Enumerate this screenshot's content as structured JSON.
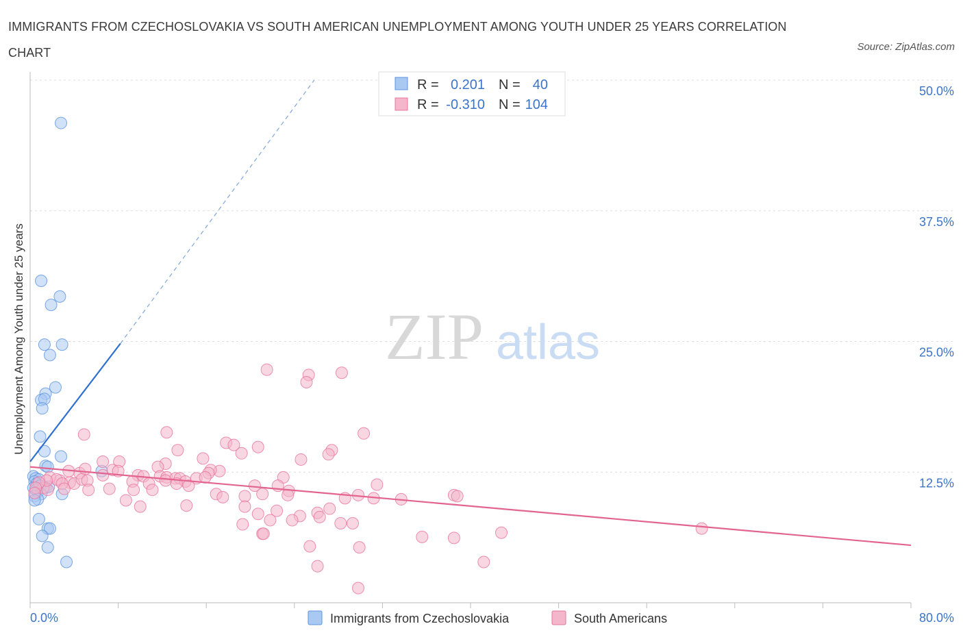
{
  "chart_data": {
    "type": "scatter",
    "title": "IMMIGRANTS FROM CZECHOSLOVAKIA VS SOUTH AMERICAN UNEMPLOYMENT AMONG YOUTH UNDER 25 YEARS CORRELATION CHART",
    "source": "Source: ZipAtlas.com",
    "ylabel": "Unemployment Among Youth under 25 years",
    "xlim": [
      0,
      80
    ],
    "ylim": [
      0,
      50
    ],
    "x_tick_labels": [
      "0.0%",
      "80.0%"
    ],
    "y_ticks": [
      12.5,
      25.0,
      37.5,
      50.0
    ],
    "y_tick_labels": [
      "12.5%",
      "25.0%",
      "37.5%",
      "50.0%"
    ],
    "watermark": "ZIPatlas",
    "legend": {
      "rows": [
        {
          "r_label": "R =",
          "r": "0.201",
          "n_label": "N =",
          "n": "40"
        },
        {
          "r_label": "R =",
          "r": "-0.310",
          "n_label": "N =",
          "n": "104"
        }
      ]
    },
    "series": [
      {
        "name": "Immigrants from Czechoslovakia",
        "color": "#5b93e0",
        "fill": "#a9c8f2",
        "trend": {
          "x0": 0,
          "y0": 13.5,
          "x1": 8.2,
          "y1": 24.8,
          "dash_x1": 25.8,
          "dash_y1": 50.0
        },
        "points": [
          [
            2.8,
            45.9
          ],
          [
            1.0,
            30.8
          ],
          [
            1.9,
            28.5
          ],
          [
            2.7,
            29.3
          ],
          [
            1.3,
            24.7
          ],
          [
            2.9,
            24.7
          ],
          [
            1.8,
            23.7
          ],
          [
            2.3,
            20.6
          ],
          [
            1.4,
            20.0
          ],
          [
            1.0,
            19.4
          ],
          [
            1.3,
            19.5
          ],
          [
            1.1,
            18.6
          ],
          [
            0.9,
            15.9
          ],
          [
            1.3,
            14.5
          ],
          [
            2.8,
            14.0
          ],
          [
            1.4,
            13.1
          ],
          [
            1.6,
            13.0
          ],
          [
            6.5,
            12.6
          ],
          [
            0.3,
            12.1
          ],
          [
            0.5,
            11.9
          ],
          [
            0.8,
            11.8
          ],
          [
            0.4,
            11.6
          ],
          [
            0.6,
            11.4
          ],
          [
            0.9,
            11.2
          ],
          [
            0.3,
            11.0
          ],
          [
            0.5,
            10.8
          ],
          [
            0.7,
            10.6
          ],
          [
            1.4,
            11.0
          ],
          [
            1.7,
            11.1
          ],
          [
            1.0,
            10.4
          ],
          [
            2.9,
            10.4
          ],
          [
            0.4,
            10.2
          ],
          [
            0.7,
            9.9
          ],
          [
            0.4,
            9.8
          ],
          [
            0.8,
            8.0
          ],
          [
            1.6,
            7.1
          ],
          [
            1.8,
            7.1
          ],
          [
            1.1,
            6.4
          ],
          [
            1.6,
            5.3
          ],
          [
            3.3,
            3.9
          ]
        ]
      },
      {
        "name": "South Americans",
        "color": "#e9749c",
        "fill": "#f4b6cb",
        "trend": {
          "x0": 0,
          "y0": 13.0,
          "x1": 80,
          "y1": 5.5
        },
        "points": [
          [
            21.5,
            22.3
          ],
          [
            25.3,
            21.8
          ],
          [
            28.3,
            22.0
          ],
          [
            25.1,
            21.1
          ],
          [
            4.9,
            16.1
          ],
          [
            12.4,
            16.3
          ],
          [
            30.3,
            16.2
          ],
          [
            17.8,
            15.3
          ],
          [
            18.5,
            15.1
          ],
          [
            24.6,
            13.7
          ],
          [
            27.4,
            14.6
          ],
          [
            27.1,
            14.2
          ],
          [
            6.6,
            13.5
          ],
          [
            12.3,
            13.3
          ],
          [
            15.7,
            13.8
          ],
          [
            19.2,
            14.3
          ],
          [
            20.7,
            14.9
          ],
          [
            13.4,
            14.6
          ],
          [
            8.1,
            13.5
          ],
          [
            11.6,
            13.0
          ],
          [
            17.2,
            12.6
          ],
          [
            16.4,
            12.7
          ],
          [
            16.2,
            12.4
          ],
          [
            7.5,
            12.7
          ],
          [
            4.5,
            12.4
          ],
          [
            3.5,
            12.6
          ],
          [
            5.0,
            12.8
          ],
          [
            6.6,
            12.2
          ],
          [
            8.0,
            12.6
          ],
          [
            9.8,
            12.2
          ],
          [
            10.3,
            12.1
          ],
          [
            11.8,
            12.1
          ],
          [
            12.4,
            12.0
          ],
          [
            13.2,
            11.9
          ],
          [
            13.6,
            11.9
          ],
          [
            14.1,
            11.6
          ],
          [
            15.1,
            11.9
          ],
          [
            2.7,
            11.7
          ],
          [
            3.6,
            11.5
          ],
          [
            4.0,
            11.4
          ],
          [
            4.7,
            11.8
          ],
          [
            5.2,
            11.7
          ],
          [
            9.3,
            11.6
          ],
          [
            10.8,
            11.4
          ],
          [
            12.3,
            11.7
          ],
          [
            13.3,
            11.4
          ],
          [
            14.4,
            11.2
          ],
          [
            15.9,
            12.0
          ],
          [
            20.4,
            11.2
          ],
          [
            23.0,
            12.0
          ],
          [
            22.5,
            11.2
          ],
          [
            23.5,
            10.7
          ],
          [
            31.5,
            11.3
          ],
          [
            1.8,
            12.0
          ],
          [
            2.4,
            11.8
          ],
          [
            2.9,
            11.4
          ],
          [
            3.1,
            10.9
          ],
          [
            1.2,
            11.0
          ],
          [
            1.6,
            10.8
          ],
          [
            1.5,
            11.7
          ],
          [
            0.8,
            11.5
          ],
          [
            0.5,
            11.0
          ],
          [
            0.4,
            10.5
          ],
          [
            5.3,
            10.8
          ],
          [
            7.2,
            10.9
          ],
          [
            9.4,
            10.8
          ],
          [
            11.1,
            10.8
          ],
          [
            16.9,
            10.4
          ],
          [
            19.5,
            10.2
          ],
          [
            21.1,
            10.4
          ],
          [
            23.4,
            10.3
          ],
          [
            28.6,
            10.0
          ],
          [
            29.8,
            10.3
          ],
          [
            31.2,
            10.0
          ],
          [
            33.7,
            9.9
          ],
          [
            38.5,
            10.3
          ],
          [
            38.8,
            10.2
          ],
          [
            17.5,
            10.1
          ],
          [
            8.7,
            9.8
          ],
          [
            10.0,
            9.2
          ],
          [
            14.2,
            9.3
          ],
          [
            19.5,
            9.2
          ],
          [
            20.7,
            8.5
          ],
          [
            22.4,
            8.8
          ],
          [
            24.5,
            8.3
          ],
          [
            26.1,
            8.6
          ],
          [
            26.3,
            8.2
          ],
          [
            27.2,
            9.0
          ],
          [
            19.3,
            7.5
          ],
          [
            21.8,
            7.9
          ],
          [
            23.8,
            7.9
          ],
          [
            28.2,
            7.6
          ],
          [
            29.3,
            7.6
          ],
          [
            21.1,
            6.6
          ],
          [
            21.2,
            6.6
          ],
          [
            35.6,
            6.3
          ],
          [
            38.5,
            6.2
          ],
          [
            42.8,
            6.7
          ],
          [
            61.0,
            7.1
          ],
          [
            25.4,
            5.4
          ],
          [
            29.9,
            5.3
          ],
          [
            26.1,
            3.5
          ],
          [
            41.2,
            3.9
          ],
          [
            29.8,
            1.4
          ]
        ]
      }
    ]
  }
}
